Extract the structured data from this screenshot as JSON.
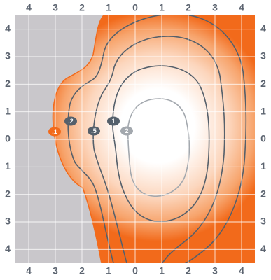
{
  "colors": {
    "plot_background": "#c9c7cb",
    "grid_line": "#ffffff",
    "heat_edge": "#f26a1b",
    "heat_center": "#ffffff",
    "contour_dark": "#55606b",
    "contour_light": "#a3a8ae",
    "tick_label": "#5c6470"
  },
  "axes": {
    "top_ticks": [
      "4",
      "3",
      "2",
      "1",
      "0",
      "1",
      "2",
      "3",
      "4"
    ],
    "bottom_ticks": [
      "4",
      "3",
      "2",
      "1",
      "0",
      "1",
      "2",
      "3",
      "4"
    ],
    "left_ticks": [
      "4",
      "3",
      "2",
      "1",
      "0",
      "1",
      "2",
      "3",
      "4"
    ],
    "right_ticks": [
      "4",
      "3",
      "2",
      "1",
      "0",
      "1",
      "2",
      "3",
      "4"
    ]
  },
  "contour_markers": [
    {
      "label": ".1",
      "style": "edge"
    },
    {
      "label": ".2",
      "style": "dark"
    },
    {
      "label": ".5",
      "style": "dark"
    },
    {
      "label": "1",
      "style": "dark"
    },
    {
      "label": "2",
      "style": "light"
    }
  ]
}
